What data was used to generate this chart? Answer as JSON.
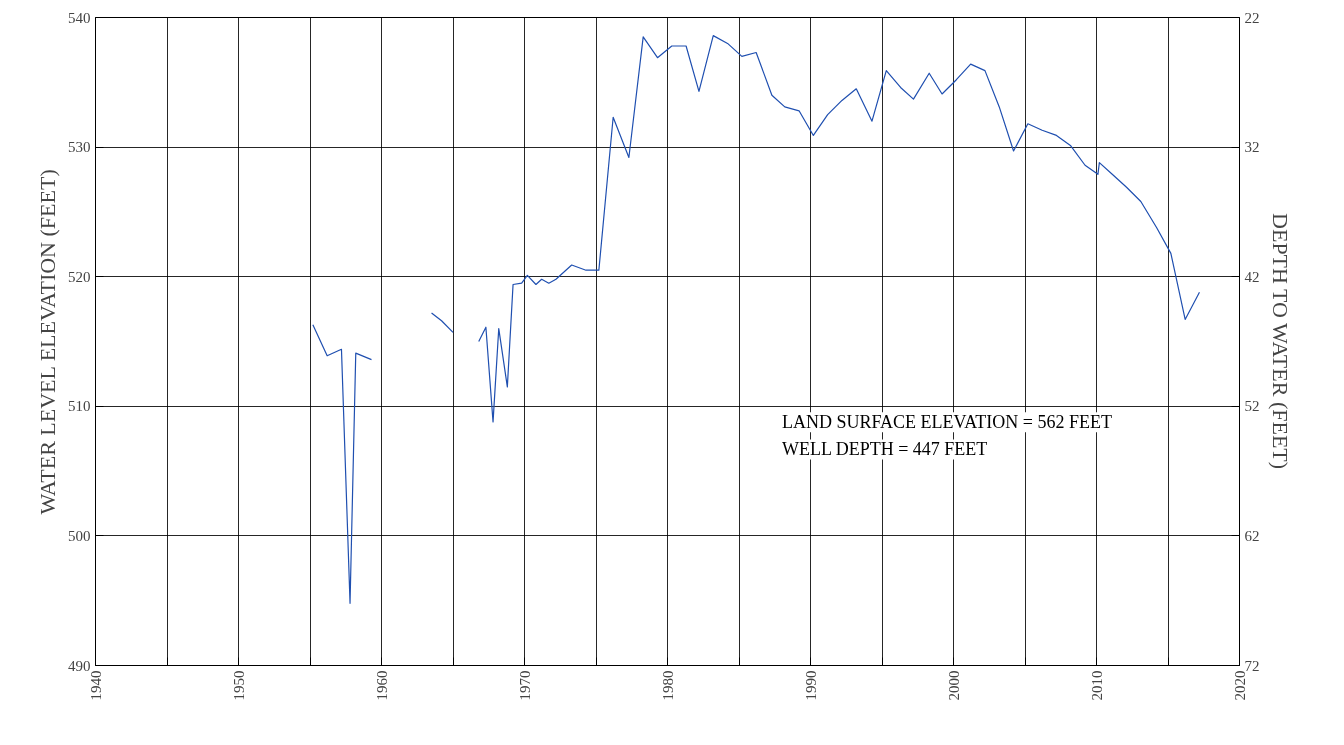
{
  "chart_data": {
    "type": "line",
    "ylabel": "WATER LEVEL ELEVATION (FEET)",
    "y2label": "DEPTH TO WATER (FEET)",
    "x": [
      1955.2,
      1956.2,
      1957.2,
      1957.8,
      1958.2,
      1959.3,
      1961.4,
      1963.5,
      1964.2,
      1965.0,
      1965.9,
      1966.8,
      1967.3,
      1967.8,
      1968.2,
      1968.8,
      1969.2,
      1969.8,
      1970.2,
      1970.8,
      1971.2,
      1971.7,
      1972.2,
      1973.3,
      1974.3,
      1975.2,
      1976.2,
      1977.3,
      1978.3,
      1979.3,
      1980.3,
      1981.3,
      1982.2,
      1983.2,
      1984.2,
      1985.2,
      1986.2,
      1987.3,
      1988.2,
      1989.2,
      1990.2,
      1991.2,
      1992.2,
      1993.2,
      1994.3,
      1995.3,
      1996.3,
      1997.2,
      1998.3,
      1999.2,
      2000.2,
      2001.2,
      2002.2,
      2003.2,
      2004.2,
      2005.2,
      2006.2,
      2007.2,
      2008.2,
      2009.2,
      2010.1,
      2010.2,
      2011.1,
      2012.1,
      2013.1,
      2014.2,
      2015.2,
      2016.2,
      2017.2
    ],
    "series": [
      {
        "color": "#1f4fb0",
        "values": [
          516.3,
          513.9,
          514.4,
          494.8,
          514.1,
          513.6,
          null,
          517.2,
          516.6,
          515.7,
          null,
          515.0,
          516.1,
          508.8,
          516.0,
          511.5,
          519.4,
          519.5,
          520.1,
          519.4,
          519.8,
          519.5,
          519.8,
          520.9,
          520.5,
          520.5,
          532.3,
          529.2,
          538.5,
          536.9,
          537.8,
          537.8,
          534.3,
          538.6,
          538.0,
          537.0,
          537.3,
          534.0,
          533.1,
          532.8,
          530.9,
          532.5,
          533.6,
          534.5,
          532.0,
          535.9,
          534.6,
          533.7,
          535.7,
          534.1,
          535.2,
          536.4,
          535.9,
          533.1,
          529.7,
          531.8,
          531.3,
          530.9,
          530.1,
          528.6,
          527.9,
          528.8,
          527.9,
          526.9,
          525.8,
          523.8,
          521.8,
          516.7,
          518.8
        ]
      }
    ],
    "xlim": [
      1940,
      2020
    ],
    "xticks": [
      1940,
      {
        "value": 1945,
        "label": null
      },
      1950,
      {
        "value": 1955,
        "label": null
      },
      1960,
      {
        "value": 1965,
        "label": null
      },
      1970,
      {
        "value": 1975,
        "label": null
      },
      1980,
      {
        "value": 1985,
        "label": null
      },
      1990,
      {
        "value": 1995,
        "label": null
      },
      2000,
      {
        "value": 2005,
        "label": null
      },
      2010,
      {
        "value": 2015,
        "label": null
      },
      2020
    ],
    "ylim": [
      490,
      540
    ],
    "yticks": [
      490,
      500,
      510,
      520,
      530,
      540
    ],
    "y2lim": [
      72,
      22
    ],
    "y2ticks": [
      22,
      32,
      42,
      52,
      62,
      72
    ],
    "grid": true,
    "line_style": "solid",
    "annotations": [
      "LAND SURFACE ELEVATION = 562 FEET",
      "WELL DEPTH = 447 FEET"
    ]
  }
}
